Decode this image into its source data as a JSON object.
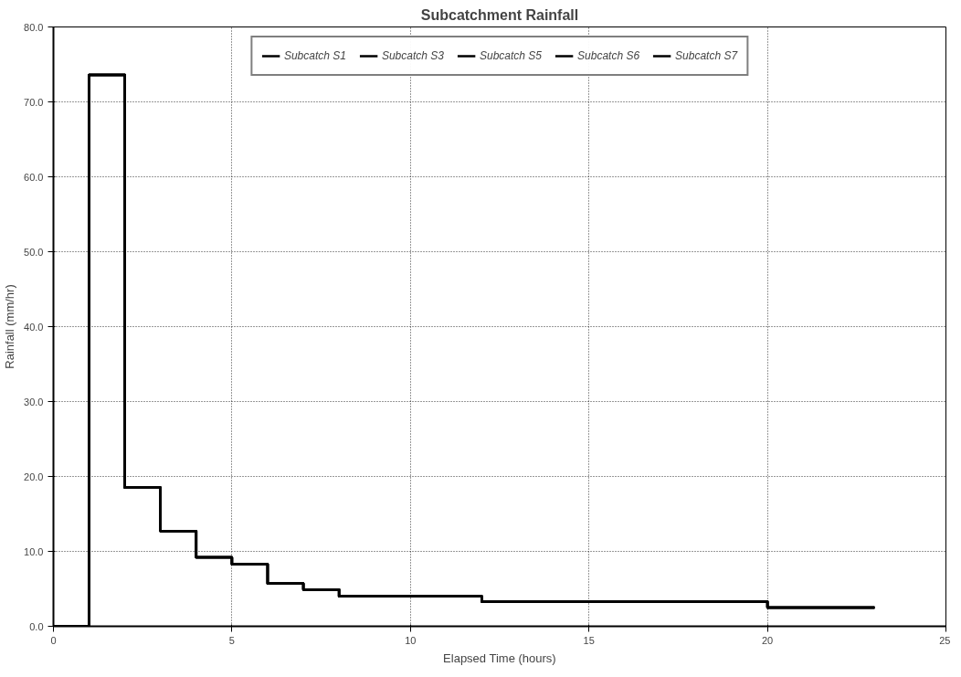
{
  "chart_data": {
    "type": "step",
    "title": "Subcatchment Rainfall",
    "xlabel": "Elapsed Time (hours)",
    "ylabel": "Rainfall (mm/hr)",
    "x": [
      0,
      1,
      2,
      3,
      4,
      5,
      6,
      7,
      8,
      12,
      20,
      23
    ],
    "series": [
      {
        "name": "Subcatch S1",
        "color": "#000000",
        "values": [
          0,
          73.6,
          18.5,
          12.7,
          9.2,
          8.3,
          5.7,
          4.9,
          4.0,
          3.3,
          2.5,
          2.5
        ]
      },
      {
        "name": "Subcatch S3",
        "color": "#000000",
        "values": [
          0,
          73.6,
          18.5,
          12.7,
          9.2,
          8.3,
          5.7,
          4.9,
          4.0,
          3.3,
          2.5,
          2.5
        ]
      },
      {
        "name": "Subcatch S5",
        "color": "#000000",
        "values": [
          0,
          73.6,
          18.5,
          12.7,
          9.2,
          8.3,
          5.7,
          4.9,
          4.0,
          3.3,
          2.5,
          2.5
        ]
      },
      {
        "name": "Subcatch S6",
        "color": "#000000",
        "values": [
          0,
          73.6,
          18.5,
          12.7,
          9.2,
          8.3,
          5.7,
          4.9,
          4.0,
          3.3,
          2.5,
          2.5
        ]
      },
      {
        "name": "Subcatch S7",
        "color": "#000000",
        "values": [
          0,
          73.6,
          18.5,
          12.7,
          9.2,
          8.3,
          5.7,
          4.9,
          4.0,
          3.3,
          2.5,
          2.5
        ]
      }
    ],
    "xlim": [
      0,
      25
    ],
    "xticks": [
      0,
      5,
      10,
      15,
      20,
      25
    ],
    "ylim": [
      0,
      80
    ],
    "yticks": [
      {
        "value": 0,
        "label": "0.0"
      },
      {
        "value": 10,
        "label": "10.0"
      },
      {
        "value": 20,
        "label": "20.0"
      },
      {
        "value": 30,
        "label": "30.0"
      },
      {
        "value": 40,
        "label": "40.0"
      },
      {
        "value": 50,
        "label": "50.0"
      },
      {
        "value": 60,
        "label": "60.0"
      },
      {
        "value": 70,
        "label": "70.0"
      },
      {
        "value": 80,
        "label": "80.0"
      }
    ],
    "grid": true,
    "legend": "top",
    "line_style": "solid",
    "marker": "none"
  }
}
